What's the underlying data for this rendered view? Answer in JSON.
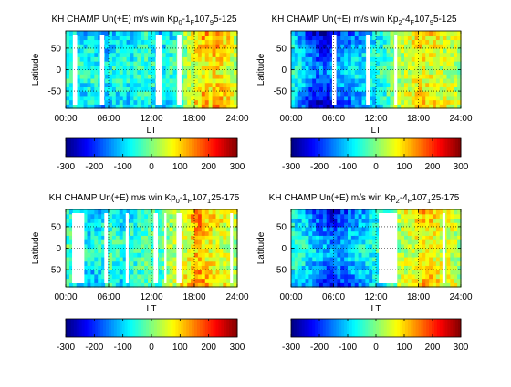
{
  "figure": {
    "background": "#ffffff"
  },
  "chart_data": [
    {
      "type": "heatmap",
      "title_main": "KH CHAMP Un(+E) m/s win Kp",
      "title_kp_lo": "0",
      "title_kp_dash": "-1",
      "title_f": "F",
      "title_f107": "107",
      "title_range_sub": "9",
      "title_range_tail": "5-125",
      "xlabel": "LT",
      "ylabel": "Latitude",
      "xticks": [
        "00:00",
        "06:00",
        "12:00",
        "18:00",
        "24:00"
      ],
      "yticks": [
        "50",
        "0",
        "-50"
      ],
      "xlim": [
        0,
        24
      ],
      "ylim": [
        -90,
        90
      ],
      "colorbar_ticks": [
        "-300",
        "-200",
        "-100",
        "0",
        "100",
        "200",
        "300"
      ],
      "clim": [
        -300,
        300
      ],
      "gaps_lt": [
        [
          1.0,
          1.6
        ],
        [
          4.8,
          5.4
        ],
        [
          12.6,
          13.4
        ],
        [
          15.6,
          16.2
        ]
      ],
      "x": [
        0.25,
        0.75,
        1.25,
        1.75,
        2.25,
        2.75,
        3.25,
        3.75,
        4.25,
        4.75,
        5.25,
        5.75,
        6.25,
        6.75,
        7.25,
        7.75,
        8.25,
        8.75,
        9.25,
        9.75,
        10.25,
        10.75,
        11.25,
        11.75,
        12.25,
        12.75,
        13.25,
        13.75,
        14.25,
        14.75,
        15.25,
        15.75,
        16.25,
        16.75,
        17.25,
        17.75,
        18.25,
        18.75,
        19.25,
        19.75,
        20.25,
        20.75,
        21.25,
        21.75,
        22.25,
        22.75,
        23.25,
        23.75
      ],
      "profile": [
        -60,
        -70,
        -60,
        -80,
        -90,
        -100,
        -80,
        -70,
        -90,
        -100,
        -110,
        -120,
        -100,
        -90,
        -80,
        -70,
        -80,
        -90,
        -100,
        -80,
        -70,
        -60,
        -50,
        -60,
        -80,
        -100,
        -110,
        -90,
        -80,
        -70,
        -60,
        -40,
        -20,
        10,
        40,
        60,
        80,
        100,
        120,
        110,
        90,
        120,
        130,
        110,
        90,
        80,
        60,
        40
      ]
    },
    {
      "type": "heatmap",
      "title_main": "KH CHAMP Un(+E) m/s win Kp",
      "title_kp_lo": "2",
      "title_kp_dash": "-4",
      "title_f": "F",
      "title_f107": "107",
      "title_range_sub": "9",
      "title_range_tail": "5-125",
      "xlabel": "LT",
      "ylabel": "Latitude",
      "xticks": [
        "00:00",
        "06:00",
        "12:00",
        "18:00",
        "24:00"
      ],
      "yticks": [
        "50",
        "0",
        "-50"
      ],
      "xlim": [
        0,
        24
      ],
      "ylim": [
        -90,
        90
      ],
      "colorbar_ticks": [
        "-300",
        "-200",
        "-100",
        "0",
        "100",
        "200",
        "300"
      ],
      "clim": [
        -300,
        300
      ],
      "gaps_lt": [
        [
          5.8,
          6.4
        ],
        [
          10.6,
          11.1
        ],
        [
          14.6,
          15.0
        ]
      ],
      "x": [
        0.25,
        0.75,
        1.25,
        1.75,
        2.25,
        2.75,
        3.25,
        3.75,
        4.25,
        4.75,
        5.25,
        5.75,
        6.25,
        6.75,
        7.25,
        7.75,
        8.25,
        8.75,
        9.25,
        9.75,
        10.25,
        10.75,
        11.25,
        11.75,
        12.25,
        12.75,
        13.25,
        13.75,
        14.25,
        14.75,
        15.25,
        15.75,
        16.25,
        16.75,
        17.25,
        17.75,
        18.25,
        18.75,
        19.25,
        19.75,
        20.25,
        20.75,
        21.25,
        21.75,
        22.25,
        22.75,
        23.25,
        23.75
      ],
      "profile": [
        -80,
        -100,
        -120,
        -140,
        -170,
        -190,
        -210,
        -220,
        -230,
        -240,
        -230,
        -200,
        -180,
        -170,
        -160,
        -150,
        -150,
        -140,
        -130,
        -120,
        -110,
        -100,
        -90,
        -80,
        -70,
        -60,
        -50,
        -30,
        -10,
        10,
        30,
        40,
        50,
        60,
        70,
        80,
        90,
        90,
        80,
        80,
        70,
        70,
        60,
        50,
        50,
        40,
        40,
        30
      ]
    },
    {
      "type": "heatmap",
      "title_main": "KH CHAMP Un(+E) m/s win Kp",
      "title_kp_lo": "0",
      "title_kp_dash": "-1",
      "title_f": "F",
      "title_f107": "107",
      "title_range_sub": "1",
      "title_range_tail": "25-175",
      "xlabel": "LT",
      "ylabel": "Latitude",
      "xticks": [
        "00:00",
        "06:00",
        "12:00",
        "18:00",
        "24:00"
      ],
      "yticks": [
        "50",
        "0",
        "-50"
      ],
      "xlim": [
        0,
        24
      ],
      "ylim": [
        -90,
        90
      ],
      "colorbar_ticks": [
        "-300",
        "-200",
        "-100",
        "0",
        "100",
        "200",
        "300"
      ],
      "clim": [
        -300,
        300
      ],
      "gaps_lt": [
        [
          0.9,
          2.6
        ],
        [
          5.4,
          5.9
        ],
        [
          8.4,
          8.8
        ],
        [
          12.3,
          12.9
        ],
        [
          13.8,
          14.1
        ],
        [
          15.5,
          16.2
        ],
        [
          23.0,
          23.4
        ]
      ],
      "x": [
        0.25,
        0.75,
        1.25,
        1.75,
        2.25,
        2.75,
        3.25,
        3.75,
        4.25,
        4.75,
        5.25,
        5.75,
        6.25,
        6.75,
        7.25,
        7.75,
        8.25,
        8.75,
        9.25,
        9.75,
        10.25,
        10.75,
        11.25,
        11.75,
        12.25,
        12.75,
        13.25,
        13.75,
        14.25,
        14.75,
        15.25,
        15.75,
        16.25,
        16.75,
        17.25,
        17.75,
        18.25,
        18.75,
        19.25,
        19.75,
        20.25,
        20.75,
        21.25,
        21.75,
        22.25,
        22.75,
        23.25,
        23.75
      ],
      "profile": [
        -40,
        -50,
        -60,
        -70,
        -80,
        -90,
        -100,
        -110,
        -100,
        -90,
        -80,
        -60,
        -50,
        -60,
        -70,
        -80,
        -90,
        -80,
        -70,
        -60,
        -50,
        -40,
        -30,
        -30,
        -40,
        -50,
        -40,
        -20,
        0,
        20,
        40,
        60,
        70,
        80,
        90,
        110,
        150,
        140,
        120,
        100,
        90,
        80,
        80,
        70,
        60,
        50,
        40,
        30
      ]
    },
    {
      "type": "heatmap",
      "title_main": "KH CHAMP Un(+E) m/s win Kp",
      "title_kp_lo": "2",
      "title_kp_dash": "-4",
      "title_f": "F",
      "title_f107": "107",
      "title_range_sub": "1",
      "title_range_tail": "25-175",
      "xlabel": "LT",
      "ylabel": "Latitude",
      "xticks": [
        "00:00",
        "06:00",
        "12:00",
        "18:00",
        "24:00"
      ],
      "yticks": [
        "50",
        "0",
        "-50"
      ],
      "xlim": [
        0,
        24
      ],
      "ylim": [
        -90,
        90
      ],
      "colorbar_ticks": [
        "-300",
        "-200",
        "-100",
        "0",
        "100",
        "200",
        "300"
      ],
      "clim": [
        -300,
        300
      ],
      "gaps_lt": [
        [
          12.4,
          15.0
        ],
        [
          21.4,
          21.8
        ]
      ],
      "x": [
        0.25,
        0.75,
        1.25,
        1.75,
        2.25,
        2.75,
        3.25,
        3.75,
        4.25,
        4.75,
        5.25,
        5.75,
        6.25,
        6.75,
        7.25,
        7.75,
        8.25,
        8.75,
        9.25,
        9.75,
        10.25,
        10.75,
        11.25,
        11.75,
        12.25,
        12.75,
        13.25,
        13.75,
        14.25,
        14.75,
        15.25,
        15.75,
        16.25,
        16.75,
        17.25,
        17.75,
        18.25,
        18.75,
        19.25,
        19.75,
        20.25,
        20.75,
        21.25,
        21.75,
        22.25,
        22.75,
        23.25,
        23.75
      ],
      "profile": [
        -70,
        -80,
        -90,
        -100,
        -110,
        -120,
        -140,
        -160,
        -170,
        -180,
        -190,
        -200,
        -190,
        -180,
        -170,
        -160,
        -150,
        -140,
        -130,
        -120,
        -110,
        -100,
        -90,
        -80,
        -70,
        -60,
        -50,
        -40,
        -20,
        0,
        20,
        40,
        50,
        60,
        70,
        80,
        90,
        100,
        100,
        90,
        80,
        80,
        70,
        60,
        60,
        50,
        40,
        30
      ]
    }
  ]
}
